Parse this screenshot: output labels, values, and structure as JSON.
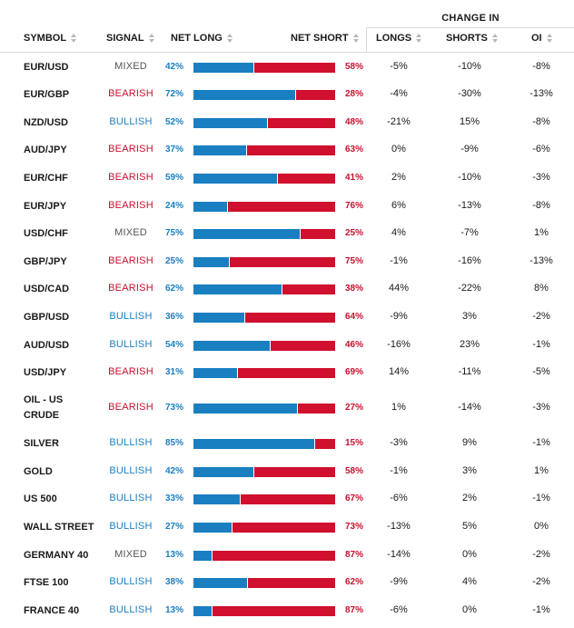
{
  "header": {
    "change_in": "CHANGE IN",
    "symbol": "SYMBOL",
    "signal": "SIGNAL",
    "net_long": "NET LONG",
    "net_short": "NET SHORT",
    "longs": "LONGS",
    "shorts": "SHORTS",
    "oi": "OI"
  },
  "colors": {
    "long": "#1a7fc1",
    "short": "#d0102e",
    "mixed": "#555555"
  },
  "rows": [
    {
      "symbol": "EUR/USD",
      "signal": "MIXED",
      "long": "42%",
      "short": "58%",
      "long_frac": 0.42,
      "longs": "-5%",
      "shorts": "-10%",
      "oi": "-8%"
    },
    {
      "symbol": "EUR/GBP",
      "signal": "BEARISH",
      "long": "72%",
      "short": "28%",
      "long_frac": 0.72,
      "longs": "-4%",
      "shorts": "-30%",
      "oi": "-13%"
    },
    {
      "symbol": "NZD/USD",
      "signal": "BULLISH",
      "long": "52%",
      "short": "48%",
      "long_frac": 0.52,
      "longs": "-21%",
      "shorts": "15%",
      "oi": "-8%"
    },
    {
      "symbol": "AUD/JPY",
      "signal": "BEARISH",
      "long": "37%",
      "short": "63%",
      "long_frac": 0.37,
      "longs": "0%",
      "shorts": "-9%",
      "oi": "-6%"
    },
    {
      "symbol": "EUR/CHF",
      "signal": "BEARISH",
      "long": "59%",
      "short": "41%",
      "long_frac": 0.59,
      "longs": "2%",
      "shorts": "-10%",
      "oi": "-3%"
    },
    {
      "symbol": "EUR/JPY",
      "signal": "BEARISH",
      "long": "24%",
      "short": "76%",
      "long_frac": 0.24,
      "longs": "6%",
      "shorts": "-13%",
      "oi": "-8%"
    },
    {
      "symbol": "USD/CHF",
      "signal": "MIXED",
      "long": "75%",
      "short": "25%",
      "long_frac": 0.75,
      "longs": "4%",
      "shorts": "-7%",
      "oi": "1%"
    },
    {
      "symbol": "GBP/JPY",
      "signal": "BEARISH",
      "long": "25%",
      "short": "75%",
      "long_frac": 0.25,
      "longs": "-1%",
      "shorts": "-16%",
      "oi": "-13%"
    },
    {
      "symbol": "USD/CAD",
      "signal": "BEARISH",
      "long": "62%",
      "short": "38%",
      "long_frac": 0.62,
      "longs": "44%",
      "shorts": "-22%",
      "oi": "8%"
    },
    {
      "symbol": "GBP/USD",
      "signal": "BULLISH",
      "long": "36%",
      "short": "64%",
      "long_frac": 0.36,
      "longs": "-9%",
      "shorts": "3%",
      "oi": "-2%"
    },
    {
      "symbol": "AUD/USD",
      "signal": "BULLISH",
      "long": "54%",
      "short": "46%",
      "long_frac": 0.54,
      "longs": "-16%",
      "shorts": "23%",
      "oi": "-1%"
    },
    {
      "symbol": "USD/JPY",
      "signal": "BEARISH",
      "long": "31%",
      "short": "69%",
      "long_frac": 0.31,
      "longs": "14%",
      "shorts": "-11%",
      "oi": "-5%"
    },
    {
      "symbol": "OIL - US CRUDE",
      "signal": "BEARISH",
      "long": "73%",
      "short": "27%",
      "long_frac": 0.73,
      "longs": "1%",
      "shorts": "-14%",
      "oi": "-3%"
    },
    {
      "symbol": "SILVER",
      "signal": "BULLISH",
      "long": "85%",
      "short": "15%",
      "long_frac": 0.85,
      "longs": "-3%",
      "shorts": "9%",
      "oi": "-1%"
    },
    {
      "symbol": "GOLD",
      "signal": "BULLISH",
      "long": "42%",
      "short": "58%",
      "long_frac": 0.42,
      "longs": "-1%",
      "shorts": "3%",
      "oi": "1%"
    },
    {
      "symbol": "US 500",
      "signal": "BULLISH",
      "long": "33%",
      "short": "67%",
      "long_frac": 0.33,
      "longs": "-6%",
      "shorts": "2%",
      "oi": "-1%"
    },
    {
      "symbol": "WALL STREET",
      "signal": "BULLISH",
      "long": "27%",
      "short": "73%",
      "long_frac": 0.27,
      "longs": "-13%",
      "shorts": "5%",
      "oi": "0%"
    },
    {
      "symbol": "GERMANY 40",
      "signal": "MIXED",
      "long": "13%",
      "short": "87%",
      "long_frac": 0.13,
      "longs": "-14%",
      "shorts": "0%",
      "oi": "-2%"
    },
    {
      "symbol": "FTSE 100",
      "signal": "BULLISH",
      "long": "38%",
      "short": "62%",
      "long_frac": 0.38,
      "longs": "-9%",
      "shorts": "4%",
      "oi": "-2%"
    },
    {
      "symbol": "FRANCE 40",
      "signal": "BULLISH",
      "long": "13%",
      "short": "87%",
      "long_frac": 0.13,
      "longs": "-6%",
      "shorts": "0%",
      "oi": "-1%"
    }
  ]
}
